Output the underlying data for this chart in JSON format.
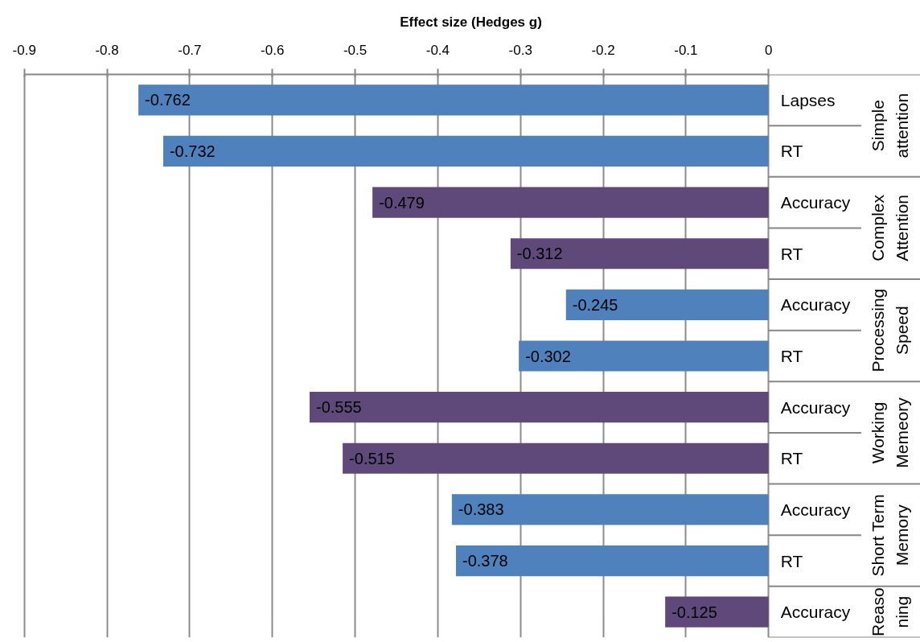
{
  "chart_data": {
    "type": "bar",
    "orientation": "horizontal",
    "xlabel": "Effect size (Hedges g)",
    "categories": [
      "Lapses",
      "RT",
      "Accuracy",
      "RT",
      "Accuracy",
      "RT",
      "Accuracy",
      "RT",
      "Accuracy",
      "RT",
      "Accuracy"
    ],
    "series": [
      {
        "name": "Simple attention",
        "color": "#4f81bd",
        "values": [
          -0.762,
          -0.732,
          null,
          null,
          null,
          null,
          null,
          null,
          null,
          null,
          null
        ]
      },
      {
        "name": "Complex Attention",
        "color": "#5f497a",
        "values": [
          null,
          null,
          -0.479,
          -0.312,
          null,
          null,
          null,
          null,
          null,
          null,
          null
        ]
      },
      {
        "name": "Processing Speed",
        "color": "#4f81bd",
        "values": [
          null,
          null,
          null,
          null,
          -0.245,
          -0.302,
          null,
          null,
          null,
          null,
          null
        ]
      },
      {
        "name": "Working Memeory",
        "color": "#5f497a",
        "values": [
          null,
          null,
          null,
          null,
          null,
          null,
          -0.555,
          -0.515,
          null,
          null,
          null
        ]
      },
      {
        "name": "Short Term Memory",
        "color": "#4f81bd",
        "values": [
          null,
          null,
          null,
          null,
          null,
          null,
          null,
          null,
          -0.383,
          -0.378,
          null
        ]
      },
      {
        "name": "Reasoning",
        "color": "#5f497a",
        "values": [
          null,
          null,
          null,
          null,
          null,
          null,
          null,
          null,
          null,
          null,
          -0.125
        ]
      }
    ],
    "xlim": [
      -0.9,
      0
    ],
    "xticks": [
      -0.9,
      -0.8,
      -0.7,
      -0.6,
      -0.5,
      -0.4,
      -0.3,
      -0.2,
      -0.1,
      0
    ],
    "grid": "x",
    "data_labels": true
  }
}
